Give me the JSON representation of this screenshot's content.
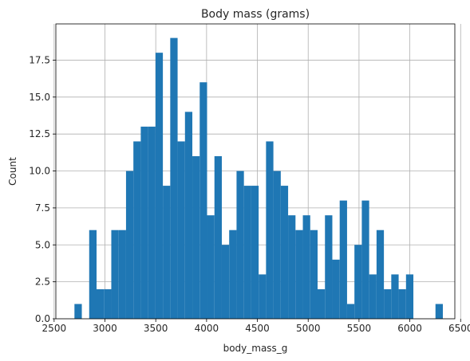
{
  "chart_data": {
    "type": "bar",
    "title": "Body mass (grams)",
    "xlabel": "body_mass_g",
    "ylabel": "Count",
    "xlim": [
      2517,
      6443
    ],
    "ylim": [
      0,
      19.95
    ],
    "xticks": [
      2500,
      3000,
      3500,
      4000,
      4500,
      5000,
      5500,
      6000,
      6500
    ],
    "xtick_labels": [
      "2500",
      "3000",
      "3500",
      "4000",
      "4500",
      "5000",
      "5500",
      "6000",
      "6500"
    ],
    "yticks": [
      0,
      2.5,
      5,
      7.5,
      10,
      12.5,
      15,
      17.5
    ],
    "ytick_labels": [
      "0.0",
      "2.5",
      "5.0",
      "7.5",
      "10.0",
      "12.5",
      "15.0",
      "17.5"
    ],
    "grid": true,
    "bar_color": "#1f77b4",
    "bin_width": 72.5,
    "bin_edges_start": 2700,
    "counts": [
      1,
      0,
      6,
      2,
      2,
      6,
      6,
      10,
      12,
      13,
      13,
      18,
      9,
      19,
      12,
      14,
      11,
      16,
      7,
      11,
      5,
      6,
      10,
      9,
      9,
      3,
      12,
      10,
      9,
      7,
      6,
      7,
      6,
      2,
      7,
      4,
      8,
      1,
      5,
      8,
      3,
      6,
      2,
      3,
      2,
      3,
      0,
      0,
      0,
      1
    ]
  }
}
